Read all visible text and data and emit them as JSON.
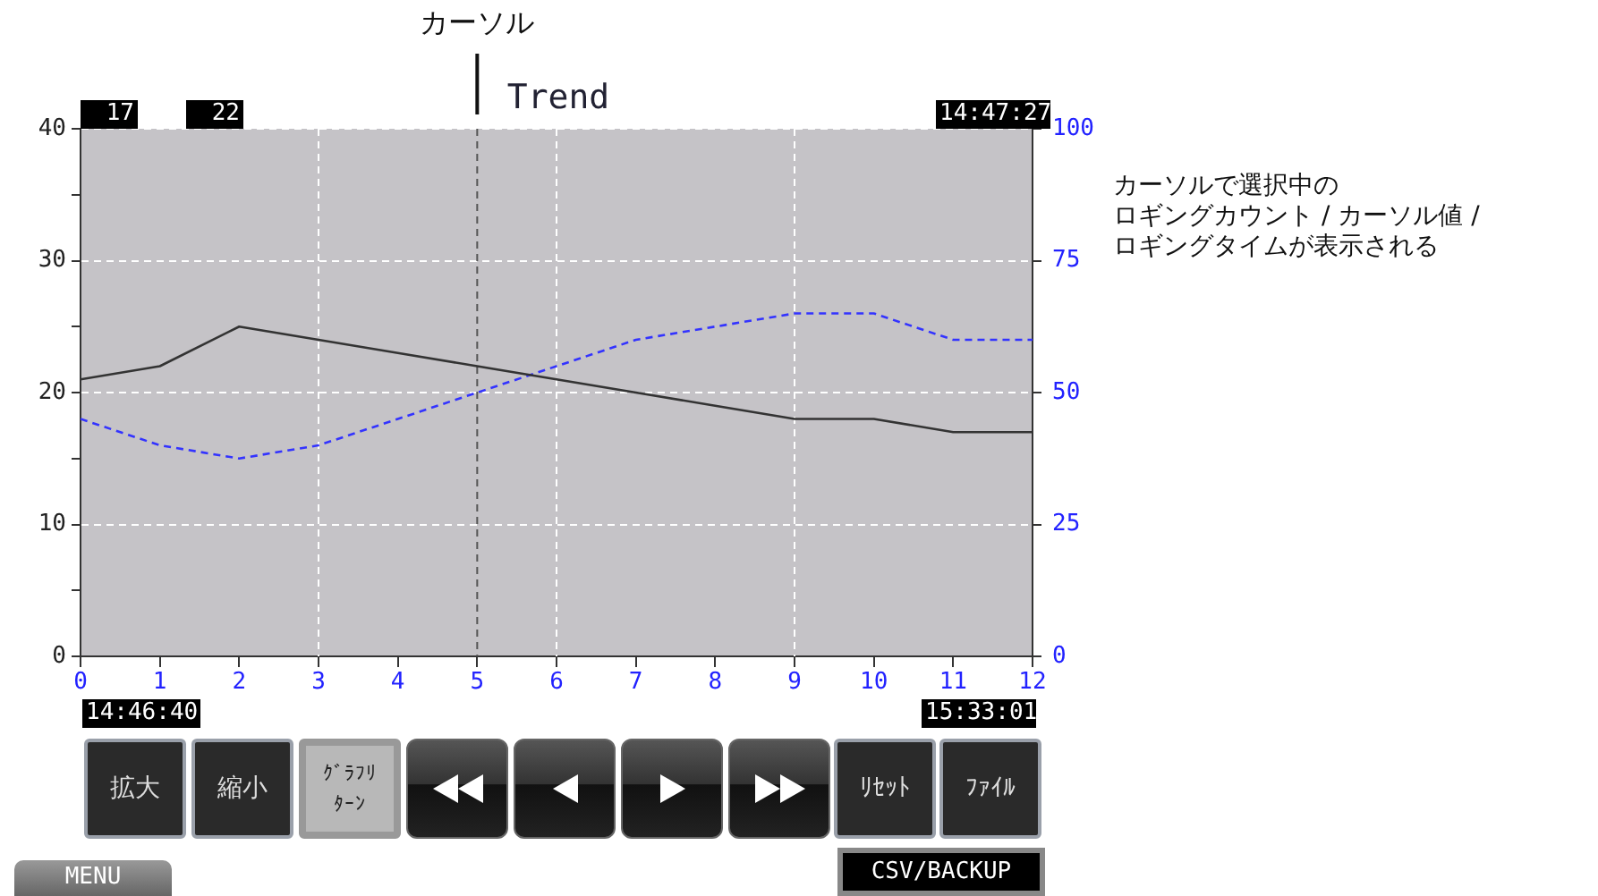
{
  "chart_data": {
    "type": "line",
    "title": "Trend",
    "x": [
      0,
      1,
      2,
      3,
      4,
      5,
      6,
      7,
      8,
      9,
      10,
      11,
      12
    ],
    "series": [
      {
        "color": "#333333",
        "line_style": "solid",
        "values": [
          21,
          22,
          25,
          24,
          23,
          22,
          21,
          20,
          19,
          18,
          18,
          17,
          17
        ]
      },
      {
        "color": "#3333ff",
        "line_style": "dashed",
        "axis": "y2",
        "values": [
          45,
          40,
          37.5,
          40,
          45,
          50,
          55,
          60,
          62.5,
          65,
          65,
          60,
          60
        ]
      }
    ],
    "xlim": [
      0,
      12
    ],
    "xticks": [
      0,
      1,
      2,
      3,
      4,
      5,
      6,
      7,
      8,
      9,
      10,
      11,
      12
    ],
    "ylim": [
      0,
      40
    ],
    "yticks": [
      0,
      {
        "value": 5,
        "label": null
      },
      10,
      {
        "value": 15,
        "label": null
      },
      20,
      {
        "value": 25,
        "label": null
      },
      30,
      {
        "value": 35,
        "label": null
      },
      40
    ],
    "y2lim": [
      0,
      100
    ],
    "y2ticks": [
      0,
      25,
      50,
      75,
      100
    ],
    "grid": "y",
    "legend": false,
    "marker": "none",
    "ref_lines": [
      {
        "axis": "x",
        "value": 3,
        "color": "#ffffff",
        "line_style": "dashed"
      },
      {
        "axis": "x",
        "value": 6,
        "color": "#ffffff",
        "line_style": "dashed"
      },
      {
        "axis": "x",
        "value": 9,
        "color": "#ffffff",
        "line_style": "dashed"
      },
      {
        "axis": "x",
        "value": 5,
        "label": "カーソル",
        "color": "#555555",
        "line_style": "dashed"
      }
    ],
    "annotations": [
      "17",
      "22",
      "14:47:27",
      "14:46:40",
      "15:33:01",
      "カーソルで選択中の",
      "ロギングカウント / カーソル値 /",
      "ロギングタイムが表示される",
      "拡大",
      "縮小",
      "ｸﾞﾗﾌﾘﾀｰﾝ",
      "ﾘｾｯﾄ",
      "ﾌｧｲﾙ",
      "MENU",
      "CSV/BACKUP"
    ]
  }
}
